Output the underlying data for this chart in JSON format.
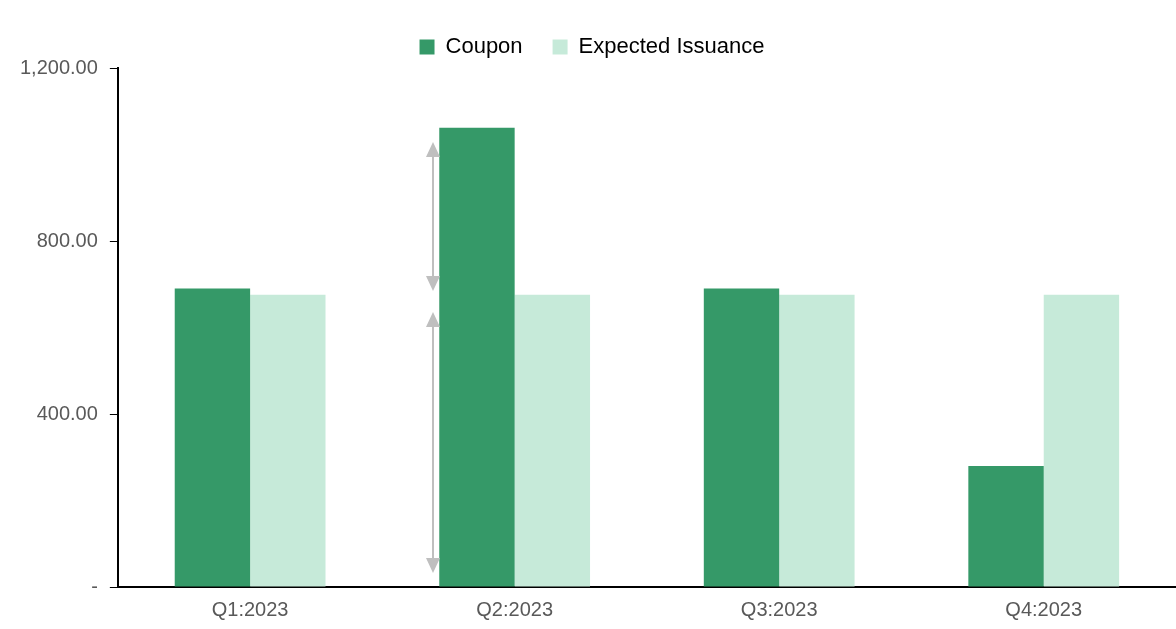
{
  "chart_data": {
    "type": "bar",
    "categories": [
      "Q1:2023",
      "Q2:2023",
      "Q3:2023",
      "Q4:2023"
    ],
    "series": [
      {
        "name": "Coupon",
        "color": "#359968",
        "values": [
          690,
          1062,
          690,
          280
        ]
      },
      {
        "name": "Expected Issuance",
        "color": "#c6ead9",
        "values": [
          676,
          676,
          676,
          676
        ]
      }
    ],
    "ylim": [
      0,
      1200
    ],
    "yticks": [
      {
        "value": 0,
        "label": "-"
      },
      {
        "value": 400,
        "label": "400.00"
      },
      {
        "value": 800,
        "label": "800.00"
      },
      {
        "value": 1200,
        "label": "1,200.00"
      }
    ],
    "grid": false,
    "legend": "top"
  }
}
